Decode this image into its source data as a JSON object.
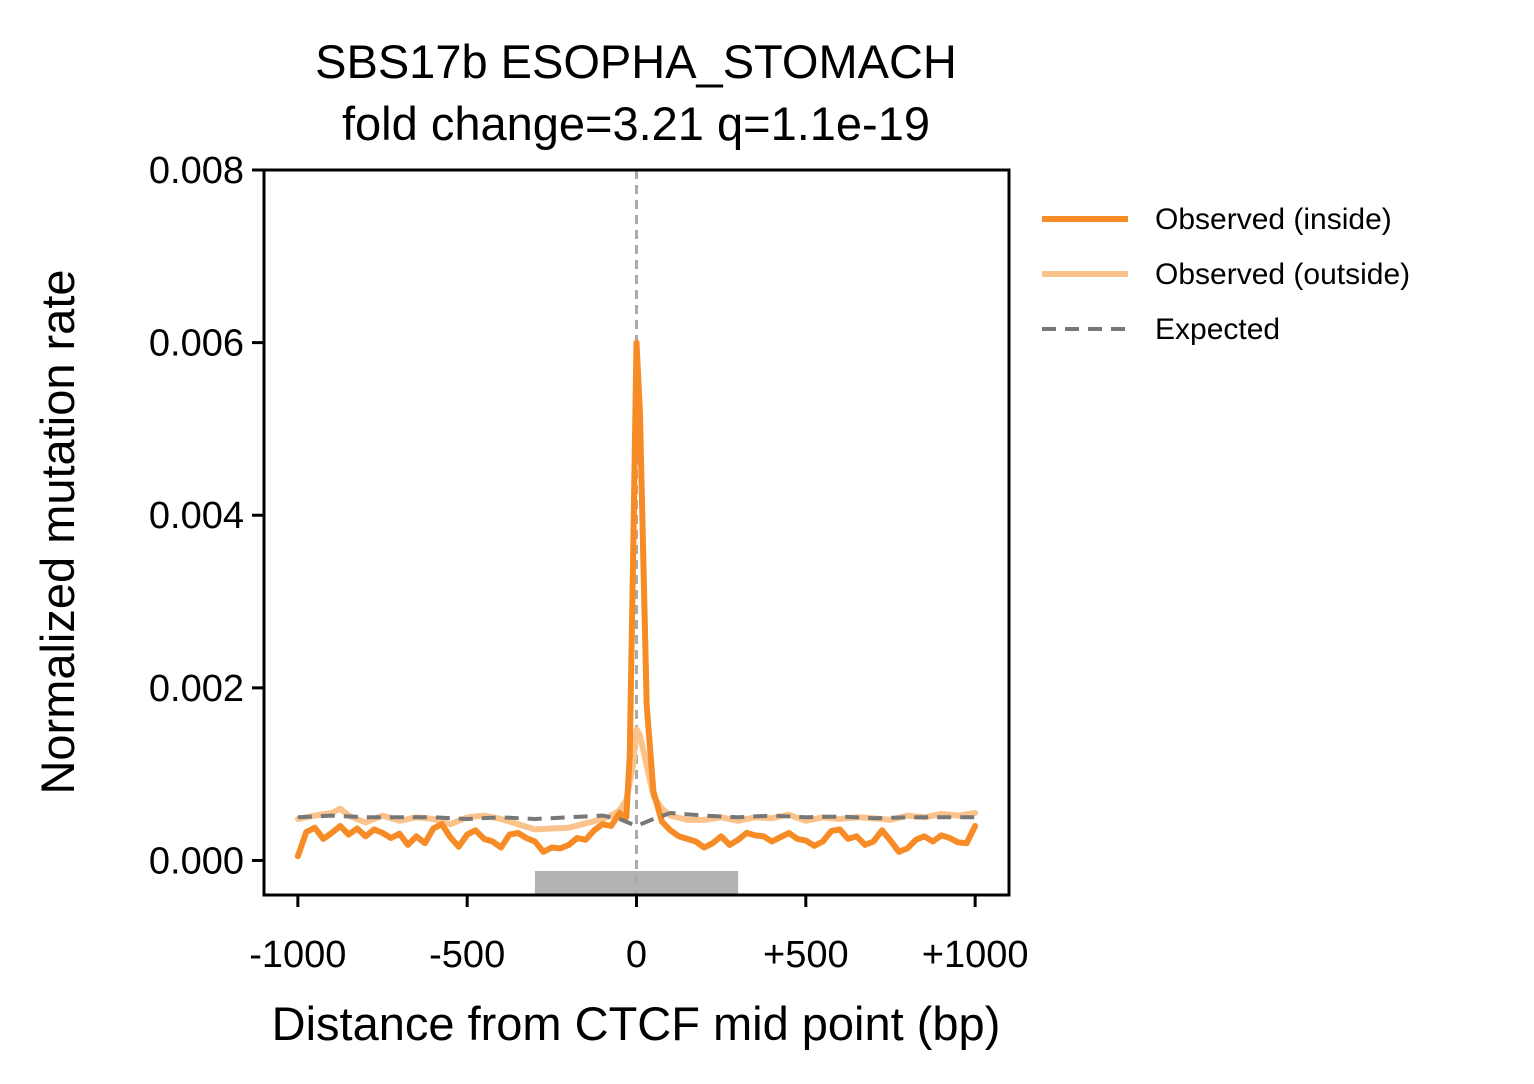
{
  "chart_data": {
    "type": "line",
    "title": "SBS17b ESOPHA_STOMACH",
    "subtitle": "fold change=3.21 q=1.1e-19",
    "xlabel": "Distance from CTCF mid point (bp)",
    "ylabel": "Normalized mutation rate",
    "xlim": [
      -1100,
      1100
    ],
    "ylim": [
      -0.0004,
      0.008
    ],
    "x_ticks": [
      -1000,
      -500,
      0,
      500,
      1000
    ],
    "x_tick_labels": [
      "-1000",
      "-500",
      "0",
      "+500",
      "+1000"
    ],
    "y_ticks": [
      0,
      0.002,
      0.004,
      0.006,
      0.008
    ],
    "y_tick_labels": [
      "0.000",
      "0.002",
      "0.004",
      "0.006",
      "0.008"
    ],
    "legend_position": "outside-right-top",
    "grid": false,
    "reference_line_x": 0,
    "motif_region": [
      -300,
      300
    ],
    "series": [
      {
        "name": "Observed (inside)",
        "color": "#f78b26",
        "style": "solid",
        "x": [
          -1000,
          -975,
          -950,
          -925,
          -900,
          -875,
          -850,
          -825,
          -800,
          -775,
          -750,
          -725,
          -700,
          -675,
          -650,
          -625,
          -600,
          -575,
          -550,
          -525,
          -500,
          -475,
          -450,
          -425,
          -400,
          -375,
          -350,
          -325,
          -300,
          -275,
          -250,
          -225,
          -200,
          -175,
          -150,
          -125,
          -100,
          -75,
          -50,
          -30,
          -20,
          -10,
          0,
          10,
          20,
          30,
          50,
          75,
          100,
          125,
          150,
          175,
          200,
          225,
          250,
          275,
          300,
          325,
          350,
          375,
          400,
          425,
          450,
          475,
          500,
          525,
          550,
          575,
          600,
          625,
          650,
          675,
          700,
          725,
          750,
          775,
          800,
          825,
          850,
          875,
          900,
          925,
          950,
          975,
          1000
        ],
        "y": [
          5e-05,
          0.00033,
          0.00038,
          0.00025,
          0.00032,
          0.0004,
          0.0003,
          0.00037,
          0.00028,
          0.00036,
          0.00032,
          0.00026,
          0.00031,
          0.00018,
          0.00028,
          0.0002,
          0.00037,
          0.00042,
          0.00027,
          0.00016,
          0.0003,
          0.00035,
          0.00025,
          0.00022,
          0.00015,
          0.0003,
          0.00032,
          0.00026,
          0.00022,
          0.0001,
          0.00015,
          0.00014,
          0.00018,
          0.00026,
          0.00024,
          0.00035,
          0.00042,
          0.0004,
          0.00055,
          0.0005,
          0.0012,
          0.0035,
          0.006,
          0.0052,
          0.0035,
          0.0018,
          0.0008,
          0.00045,
          0.00035,
          0.00028,
          0.00025,
          0.00022,
          0.00015,
          0.0002,
          0.00028,
          0.00018,
          0.00024,
          0.00032,
          0.00029,
          0.00028,
          0.00022,
          0.00027,
          0.00032,
          0.00025,
          0.00023,
          0.00017,
          0.00022,
          0.00034,
          0.00036,
          0.00025,
          0.00028,
          0.00018,
          0.00022,
          0.00035,
          0.00023,
          0.0001,
          0.00014,
          0.00024,
          0.00028,
          0.00022,
          0.00029,
          0.00026,
          0.00021,
          0.0002,
          0.0004
        ]
      },
      {
        "name": "Observed (outside)",
        "color": "#fbc38c",
        "style": "solid",
        "x": [
          -1000,
          -950,
          -900,
          -875,
          -850,
          -800,
          -750,
          -700,
          -650,
          -600,
          -550,
          -500,
          -450,
          -400,
          -350,
          -300,
          -250,
          -200,
          -150,
          -100,
          -75,
          -50,
          -30,
          -10,
          0,
          10,
          30,
          50,
          75,
          100,
          150,
          200,
          250,
          300,
          350,
          400,
          450,
          500,
          550,
          600,
          650,
          700,
          750,
          800,
          850,
          900,
          950,
          1000
        ],
        "y": [
          0.00048,
          0.00052,
          0.00055,
          0.0006,
          0.00052,
          0.00044,
          0.00052,
          0.00046,
          0.0005,
          0.00048,
          0.00042,
          0.0005,
          0.00052,
          0.00048,
          0.00042,
          0.00036,
          0.00037,
          0.00038,
          0.00043,
          0.00048,
          0.00052,
          0.00058,
          0.0007,
          0.0011,
          0.00152,
          0.00145,
          0.0011,
          0.00075,
          0.0006,
          0.00052,
          0.00047,
          0.00047,
          0.0005,
          0.00046,
          0.0005,
          0.00049,
          0.00053,
          0.00046,
          0.0005,
          0.00048,
          0.0005,
          0.00049,
          0.00047,
          0.00052,
          0.0005,
          0.00054,
          0.00052,
          0.00055
        ]
      },
      {
        "name": "Expected",
        "color": "#777777",
        "style": "dashed",
        "x": [
          -1000,
          -900,
          -800,
          -700,
          -600,
          -500,
          -400,
          -300,
          -200,
          -100,
          -50,
          0,
          50,
          100,
          200,
          300,
          400,
          500,
          600,
          700,
          800,
          900,
          1000
        ],
        "y": [
          0.0005,
          0.00052,
          0.0005,
          0.0005,
          0.0005,
          0.00048,
          0.0005,
          0.00048,
          0.0005,
          0.00052,
          0.00048,
          0.0004,
          0.00048,
          0.00055,
          0.00052,
          0.0005,
          0.00052,
          0.0005,
          0.00051,
          0.00049,
          0.0005,
          0.0005,
          0.0005
        ]
      }
    ]
  }
}
